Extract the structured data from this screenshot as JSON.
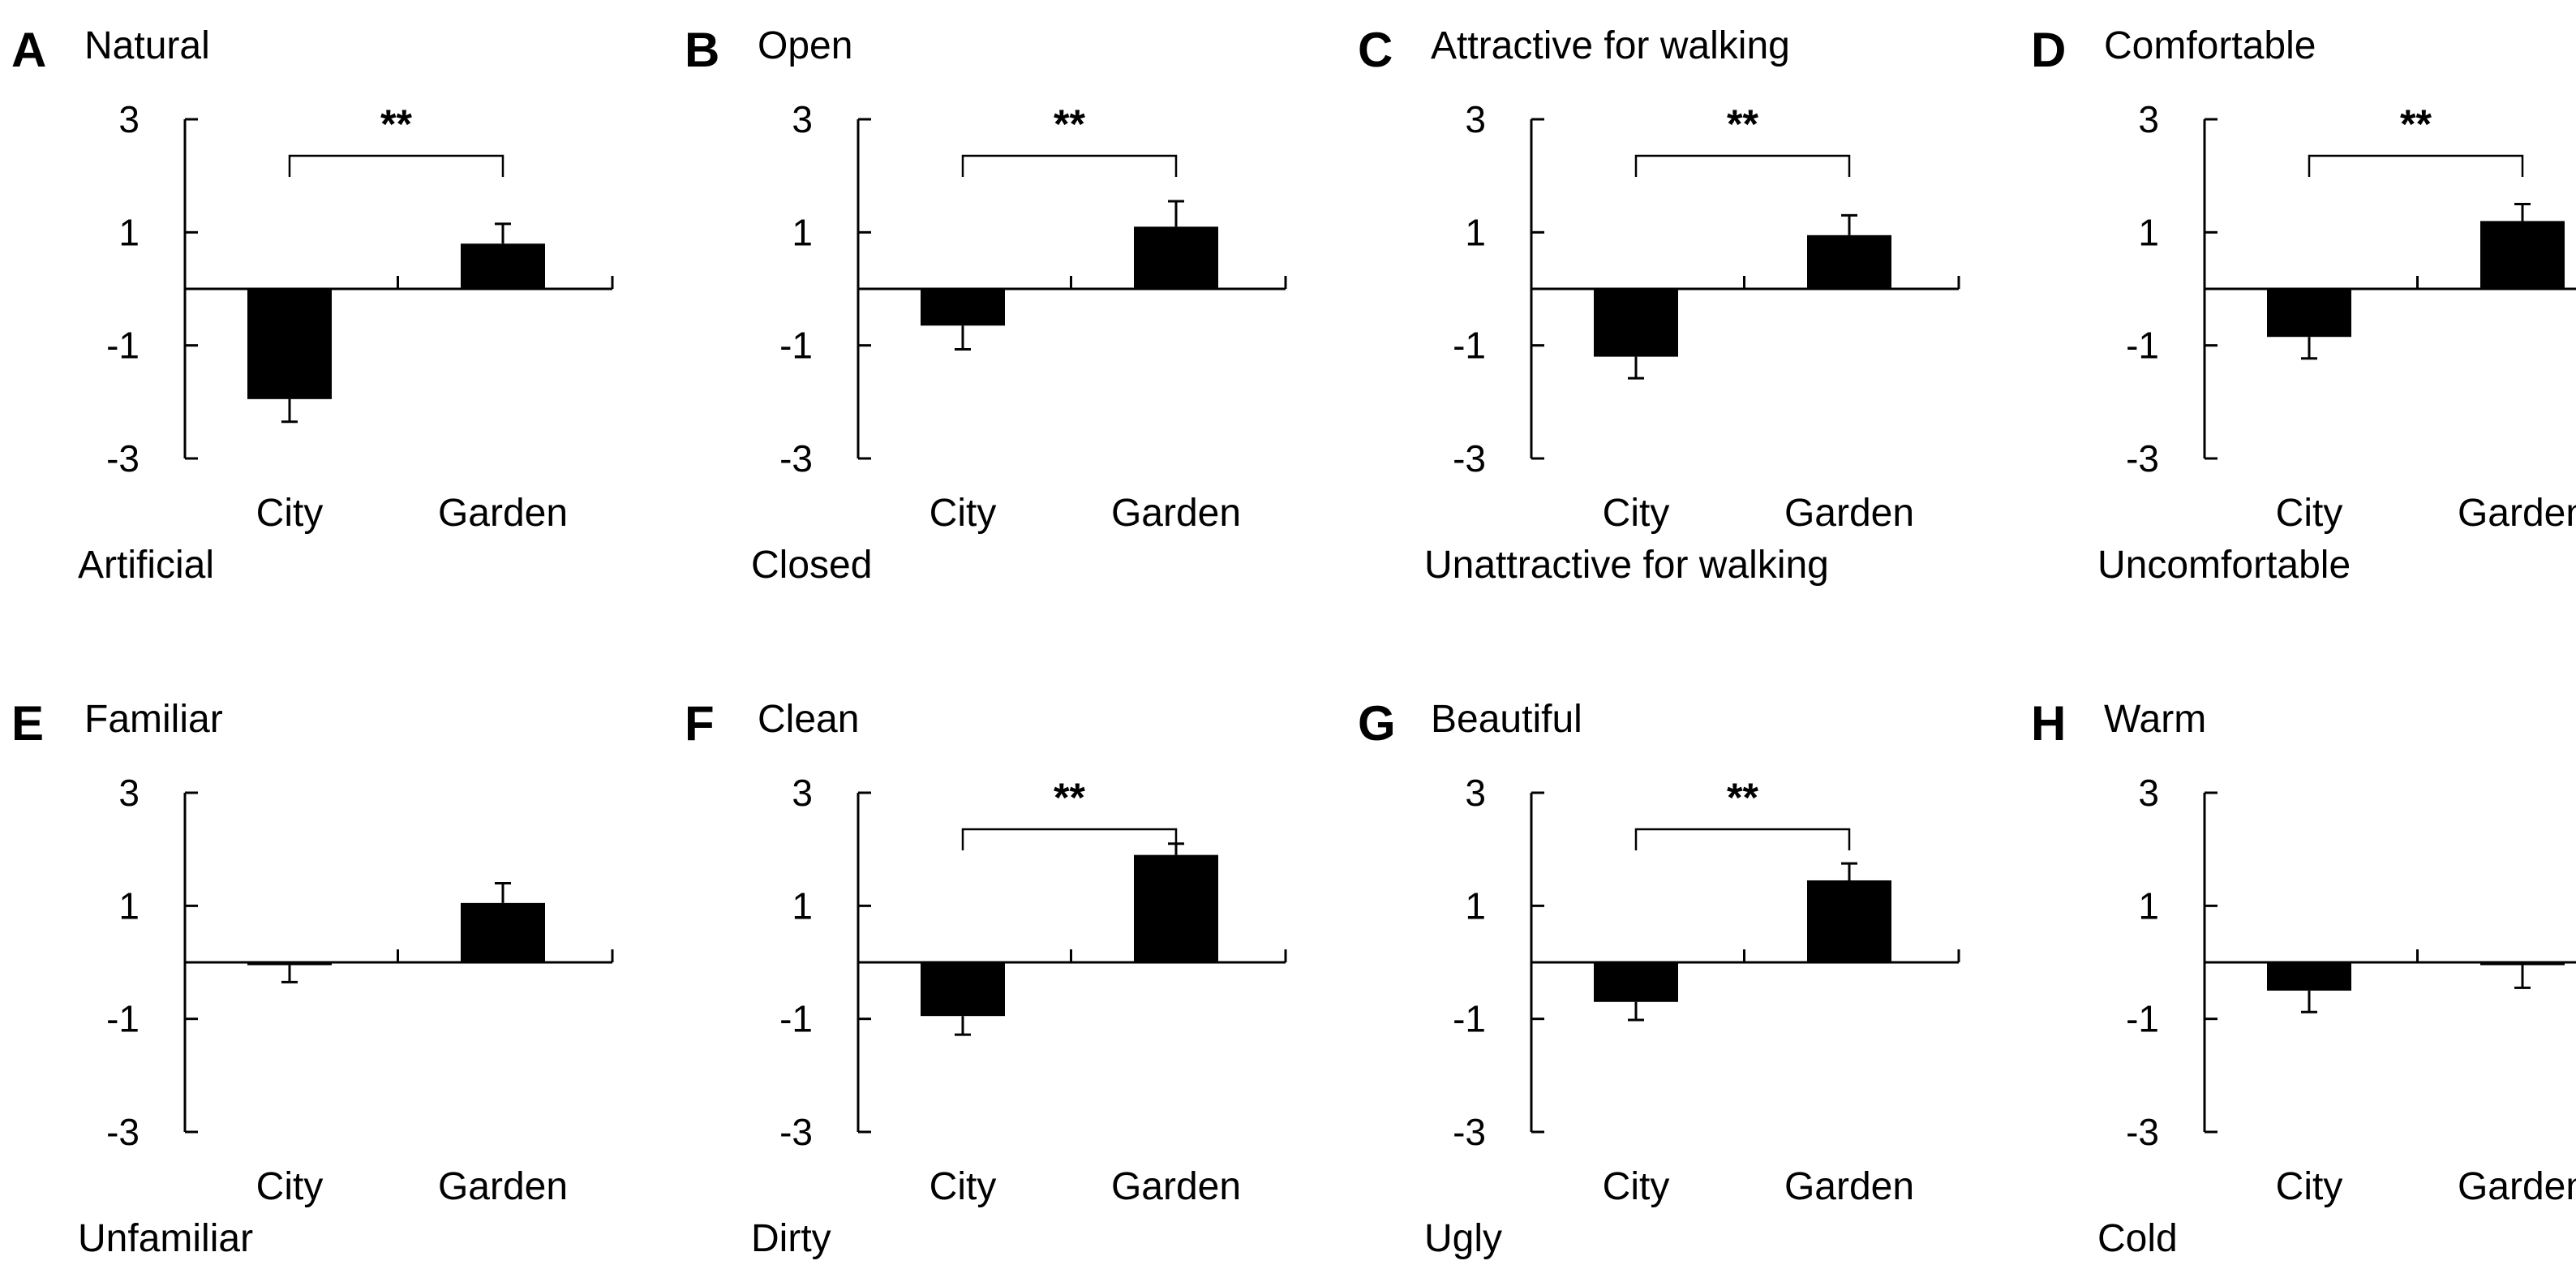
{
  "chart_data": [
    {
      "type": "bar",
      "panel": "A",
      "title": "Natural",
      "bottom_label": "Artificial",
      "categories": [
        "City",
        "Garden"
      ],
      "values": [
        -1.95,
        0.8
      ],
      "errors": [
        0.4,
        0.35
      ],
      "ylim": [
        -3,
        3
      ],
      "yticks": [
        "3",
        "1",
        "-1",
        "-3"
      ],
      "significance": "**"
    },
    {
      "type": "bar",
      "panel": "B",
      "title": "Open",
      "bottom_label": "Closed",
      "categories": [
        "City",
        "Garden"
      ],
      "values": [
        -0.65,
        1.1
      ],
      "errors": [
        0.42,
        0.45
      ],
      "ylim": [
        -3,
        3
      ],
      "yticks": [
        "3",
        "1",
        "-1",
        "-3"
      ],
      "significance": "**"
    },
    {
      "type": "bar",
      "panel": "C",
      "title": "Attractive for walking",
      "bottom_label": "Unattractive for walking",
      "categories": [
        "City",
        "Garden"
      ],
      "values": [
        -1.2,
        0.95
      ],
      "errors": [
        0.38,
        0.35
      ],
      "ylim": [
        -3,
        3
      ],
      "yticks": [
        "3",
        "1",
        "-1",
        "-3"
      ],
      "significance": "**"
    },
    {
      "type": "bar",
      "panel": "D",
      "title": "Comfortable",
      "bottom_label": "Uncomfortable",
      "categories": [
        "City",
        "Garden"
      ],
      "values": [
        -0.85,
        1.2
      ],
      "errors": [
        0.38,
        0.3
      ],
      "ylim": [
        -3,
        3
      ],
      "yticks": [
        "3",
        "1",
        "-1",
        "-3"
      ],
      "significance": "**"
    },
    {
      "type": "bar",
      "panel": "E",
      "title": "Familiar",
      "bottom_label": "Unfamiliar",
      "categories": [
        "City",
        "Garden"
      ],
      "values": [
        -0.05,
        1.05
      ],
      "errors": [
        0.3,
        0.35
      ],
      "ylim": [
        -3,
        3
      ],
      "yticks": [
        "3",
        "1",
        "-1",
        "-3"
      ],
      "significance": ""
    },
    {
      "type": "bar",
      "panel": "F",
      "title": "Clean",
      "bottom_label": "Dirty",
      "categories": [
        "City",
        "Garden"
      ],
      "values": [
        -0.95,
        1.9
      ],
      "errors": [
        0.33,
        0.2
      ],
      "ylim": [
        -3,
        3
      ],
      "yticks": [
        "3",
        "1",
        "-1",
        "-3"
      ],
      "significance": "**"
    },
    {
      "type": "bar",
      "panel": "G",
      "title": "Beautiful",
      "bottom_label": "Ugly",
      "categories": [
        "City",
        "Garden"
      ],
      "values": [
        -0.7,
        1.45
      ],
      "errors": [
        0.32,
        0.3
      ],
      "ylim": [
        -3,
        3
      ],
      "yticks": [
        "3",
        "1",
        "-1",
        "-3"
      ],
      "significance": "**"
    },
    {
      "type": "bar",
      "panel": "H",
      "title": "Warm",
      "bottom_label": "Cold",
      "categories": [
        "City",
        "Garden"
      ],
      "values": [
        -0.5,
        -0.05
      ],
      "errors": [
        0.38,
        0.4
      ],
      "ylim": [
        -3,
        3
      ],
      "yticks": [
        "3",
        "1",
        "-1",
        "-3"
      ],
      "significance": ""
    }
  ]
}
